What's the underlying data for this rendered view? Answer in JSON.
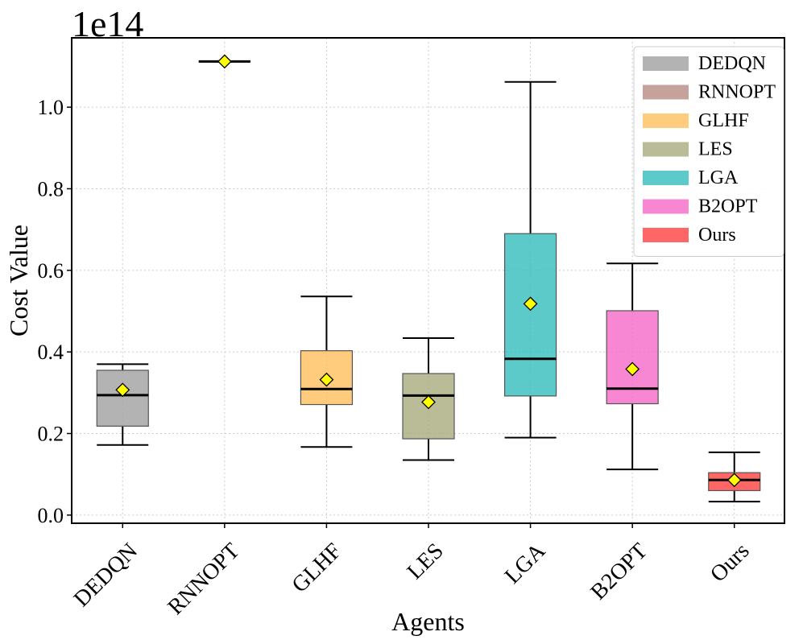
{
  "chart_data": {
    "type": "box",
    "title": "",
    "offset_label": "1e14",
    "xlabel": "Agents",
    "ylabel": "Cost Value",
    "ylim": [
      -0.02,
      1.17
    ],
    "yticks": [
      0.0,
      0.2,
      0.4,
      0.6,
      0.8,
      1.0
    ],
    "ytick_labels": [
      "0.0",
      "0.2",
      "0.4",
      "0.6",
      "0.8",
      "1.0"
    ],
    "grid": true,
    "legend_position": "top-right",
    "categories": [
      "DEDQN",
      "RNNOPT",
      "GLHF",
      "LES",
      "LGA",
      "B2OPT",
      "Ours"
    ],
    "series": [
      {
        "name": "DEDQN",
        "color": "#a0a0a0",
        "whisker_low": 0.172,
        "q1": 0.218,
        "median": 0.294,
        "q3": 0.355,
        "whisker_high": 0.37,
        "mean": 0.307
      },
      {
        "name": "RNNOPT",
        "color": "#b78b82",
        "whisker_low": 1.112,
        "q1": 1.112,
        "median": 1.112,
        "q3": 1.112,
        "whisker_high": 1.112,
        "mean": 1.112
      },
      {
        "name": "GLHF",
        "color": "#ffbe5c",
        "whisker_low": 0.167,
        "q1": 0.271,
        "median": 0.309,
        "q3": 0.403,
        "whisker_high": 0.536,
        "mean": 0.332
      },
      {
        "name": "LES",
        "color": "#a9aa7d",
        "whisker_low": 0.135,
        "q1": 0.187,
        "median": 0.293,
        "q3": 0.347,
        "whisker_high": 0.434,
        "mean": 0.277
      },
      {
        "name": "LGA",
        "color": "#35bdbd",
        "whisker_low": 0.19,
        "q1": 0.292,
        "median": 0.383,
        "q3": 0.69,
        "whisker_high": 1.062,
        "mean": 0.518
      },
      {
        "name": "B2OPT",
        "color": "#f569c8",
        "whisker_low": 0.112,
        "q1": 0.273,
        "median": 0.31,
        "q3": 0.501,
        "whisker_high": 0.617,
        "mean": 0.358
      },
      {
        "name": "Ours",
        "color": "#ff4040",
        "whisker_low": 0.033,
        "q1": 0.06,
        "median": 0.086,
        "q3": 0.104,
        "whisker_high": 0.154,
        "mean": 0.086
      }
    ]
  }
}
